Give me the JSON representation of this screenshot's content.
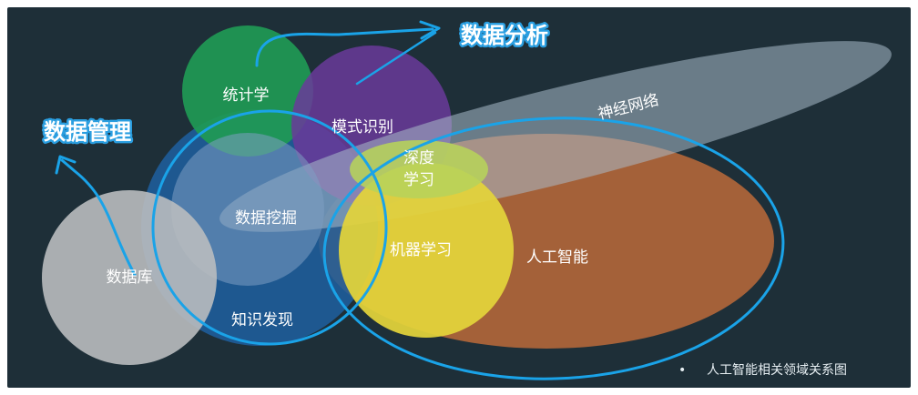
{
  "regions": {
    "statistics": "统计学",
    "pattern_recognition": "模式识别",
    "neural_network": "神经网络",
    "deep_learning_line1": "深度",
    "deep_learning_line2": "学习",
    "data_mining": "数据挖掘",
    "machine_learning": "机器学习",
    "artificial_intelligence": "人工智能",
    "database": "数据库",
    "knowledge_discovery": "知识发现"
  },
  "callouts": {
    "data_analysis": "数据分析",
    "data_management": "数据管理"
  },
  "caption": {
    "bullet": "•",
    "text": "人工智能相关领域关系图"
  },
  "colors": {
    "background": "#1e2f38",
    "statistics": "#1f9a55",
    "pattern_recognition": "#6a3a9a",
    "neural_network": "#a9bccb",
    "deep_learning": "#b7d35a",
    "data_mining": "#1f5f9c",
    "machine_learning": "#e3d43a",
    "artificial_intelligence": "#b0663a",
    "database": "#b9bcbf",
    "highlight_outline": "#1aa3e8"
  }
}
